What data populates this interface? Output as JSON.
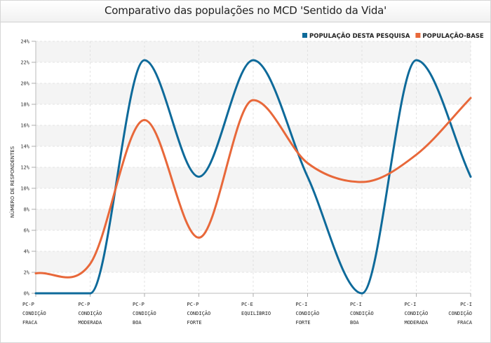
{
  "title": "Comparativo das populações no MCD 'Sentido da Vida'",
  "chart_data": {
    "type": "line",
    "ylabel": "NÚMERO DE RESPONDENTES",
    "ylim": [
      0,
      24
    ],
    "yticks": [
      "0%",
      "2%",
      "4%",
      "6%",
      "8%",
      "10%",
      "12%",
      "14%",
      "16%",
      "18%",
      "20%",
      "22%",
      "24%"
    ],
    "categories": [
      [
        "PC-P",
        "CONDIÇÃO",
        "FRACA"
      ],
      [
        "PC-P",
        "CONDIÇÃO",
        "MODERADA"
      ],
      [
        "PC-P",
        "CONDIÇÃO",
        "BOA"
      ],
      [
        "PC-P",
        "CONDIÇÃO",
        "FORTE"
      ],
      [
        "PC-E",
        "EQUILÍBRIO"
      ],
      [
        "PC-I",
        "CONDIÇÃO",
        "FORTE"
      ],
      [
        "PC-I",
        "CONDIÇÃO",
        "BOA"
      ],
      [
        "PC-I",
        "CONDIÇÃO",
        "MODERADA"
      ],
      [
        "PC-I",
        "CONDIÇÃO",
        "FRACA"
      ]
    ],
    "series": [
      {
        "name": "POPULAÇÃO DESTA PESQUISA",
        "color": "#0e6a9a",
        "values": [
          0,
          0,
          22.2,
          11.1,
          22.2,
          11.1,
          0,
          22.2,
          11.1
        ]
      },
      {
        "name": "POPULAÇÃO-BASE",
        "color": "#e8683a",
        "values": [
          1.9,
          2.8,
          16.5,
          5.3,
          18.4,
          12.4,
          10.6,
          13.2,
          18.6
        ]
      }
    ],
    "grid": true,
    "legend": "top-right"
  }
}
